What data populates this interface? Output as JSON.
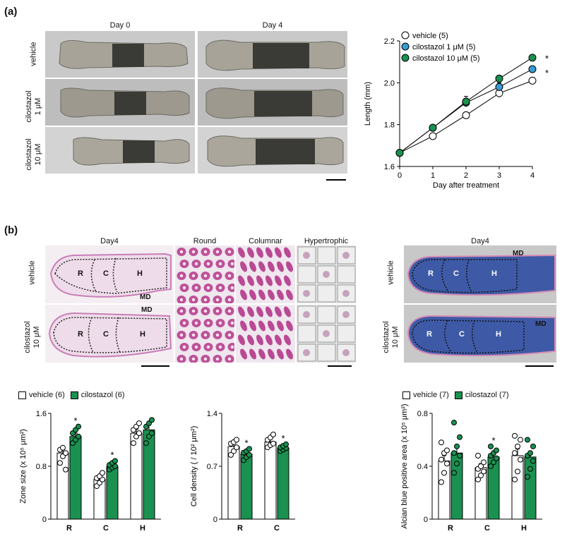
{
  "panel_a": {
    "label": "(a)",
    "col_titles": [
      "Day 0",
      "Day 4"
    ],
    "row_labels": [
      "vehicle",
      "cilostazol\n1 μM",
      "cilostazol\n10 μM"
    ]
  },
  "panel_b": {
    "label": "(b)",
    "he_titles": [
      "Day4",
      "Round",
      "Columnar",
      "Hypertrophic"
    ],
    "ab_title": "Day4",
    "row_labels": [
      "vehicle",
      "cilostazol\n10 μM"
    ],
    "zone_letters": [
      "R",
      "C",
      "H"
    ],
    "md_label": "MD"
  },
  "colors": {
    "vehicle": "#ffffff",
    "cilostazol_1": "#3a9bd5",
    "cilostazol_10": "#1a9150",
    "he_pink": "#d78bc6",
    "alcian_blue": "#3e5aa6"
  },
  "chart_data": [
    {
      "type": "line",
      "id": "length",
      "xlabel": "Day after treatment",
      "ylabel": "Length (mm)",
      "x": [
        0,
        1,
        2,
        3,
        4
      ],
      "xlim": [
        0,
        4
      ],
      "ylim": [
        1.6,
        2.2
      ],
      "yticks": [
        "1.6",
        "1.8",
        "2.0",
        "2.2"
      ],
      "xticks": [
        "0",
        "1",
        "2",
        "3",
        "4"
      ],
      "series": [
        {
          "name": "vehicle (5)",
          "values": [
            1.665,
            1.745,
            1.845,
            1.95,
            2.01
          ],
          "err": [
            0.005,
            0.01,
            0.015,
            0.02,
            0.015
          ],
          "color": "#ffffff"
        },
        {
          "name": "cilostazol 1 μM (5)",
          "values": [
            1.665,
            1.785,
            1.905,
            1.98,
            2.065
          ],
          "err": [
            0.005,
            0.01,
            0.02,
            0.02,
            0.01
          ],
          "color": "#3a9bd5"
        },
        {
          "name": "cilostazol 10 μM (5)",
          "values": [
            1.665,
            1.785,
            1.91,
            2.02,
            2.12
          ],
          "err": [
            0.005,
            0.01,
            0.025,
            0.015,
            0.01
          ],
          "color": "#1a9150"
        }
      ],
      "annotations": [
        "*",
        "*"
      ],
      "legend": "top-left"
    },
    {
      "type": "bar",
      "id": "zone_size",
      "legend": [
        "vehicle (6)",
        "cilostazol (6)"
      ],
      "ylabel": "Zone size (x 10⁵ μm²)",
      "categories": [
        "R",
        "C",
        "H"
      ],
      "ylim": [
        0,
        1.6
      ],
      "yticks": [
        "0",
        "0.8",
        "1.6"
      ],
      "series": [
        {
          "name": "vehicle (6)",
          "values": [
            1.0,
            0.6,
            1.3
          ],
          "err": [
            0.05,
            0.05,
            0.06
          ],
          "points": [
            [
              0.85,
              0.95,
              1.0,
              1.05,
              1.08,
              0.75
            ],
            [
              0.5,
              0.55,
              0.6,
              0.62,
              0.65,
              0.7
            ],
            [
              1.15,
              1.25,
              1.3,
              1.35,
              1.4,
              1.45
            ]
          ]
        },
        {
          "name": "cilostazol (6)",
          "values": [
            1.25,
            0.8,
            1.35
          ],
          "err": [
            0.05,
            0.03,
            0.07
          ],
          "points": [
            [
              1.15,
              1.2,
              1.25,
              1.3,
              1.35,
              1.4
            ],
            [
              0.75,
              0.78,
              0.8,
              0.82,
              0.85,
              0.88
            ],
            [
              1.15,
              1.25,
              1.3,
              1.4,
              1.45,
              1.5
            ]
          ]
        }
      ],
      "annotations": [
        "*",
        "*"
      ]
    },
    {
      "type": "bar",
      "id": "cell_density",
      "ylabel": "Cell density ( / 10² μm²)",
      "categories": [
        "R",
        "C"
      ],
      "ylim": [
        0,
        1.4
      ],
      "yticks": [
        "0",
        "0.7",
        "1.4"
      ],
      "series": [
        {
          "name": "vehicle (6)",
          "values": [
            0.96,
            1.02
          ],
          "err": [
            0.04,
            0.04
          ],
          "points": [
            [
              0.85,
              0.9,
              0.95,
              1.0,
              1.02,
              1.05
            ],
            [
              0.95,
              0.98,
              1.0,
              1.05,
              1.08,
              1.12
            ]
          ]
        },
        {
          "name": "cilostazol (6)",
          "values": [
            0.86,
            0.94
          ],
          "err": [
            0.03,
            0.02
          ],
          "points": [
            [
              0.78,
              0.82,
              0.85,
              0.88,
              0.9,
              0.93
            ],
            [
              0.9,
              0.92,
              0.94,
              0.95,
              0.97,
              0.99
            ]
          ]
        }
      ],
      "annotations": [
        "*",
        "*"
      ]
    },
    {
      "type": "bar",
      "id": "alcian_area",
      "legend": [
        "vehicle (7)",
        "cilostazol (7)"
      ],
      "ylabel": "Alcian blue positive area (x 10⁵ μm²)",
      "categories": [
        "R",
        "C",
        "H"
      ],
      "ylim": [
        0,
        0.8
      ],
      "yticks": [
        "0",
        "0.4",
        "0.8"
      ],
      "series": [
        {
          "name": "vehicle (7)",
          "values": [
            0.44,
            0.39,
            0.48
          ],
          "err": [
            0.04,
            0.03,
            0.05
          ],
          "points": [
            [
              0.28,
              0.35,
              0.42,
              0.45,
              0.5,
              0.52,
              0.58
            ],
            [
              0.3,
              0.33,
              0.36,
              0.38,
              0.4,
              0.43,
              0.48
            ],
            [
              0.3,
              0.36,
              0.45,
              0.5,
              0.55,
              0.6,
              0.63
            ]
          ]
        },
        {
          "name": "cilostazol (7)",
          "values": [
            0.5,
            0.47,
            0.47
          ],
          "err": [
            0.05,
            0.02,
            0.04
          ],
          "points": [
            [
              0.35,
              0.42,
              0.48,
              0.5,
              0.55,
              0.62,
              0.73
            ],
            [
              0.4,
              0.43,
              0.46,
              0.48,
              0.5,
              0.52,
              0.55
            ],
            [
              0.32,
              0.38,
              0.44,
              0.48,
              0.5,
              0.55,
              0.6
            ]
          ]
        }
      ],
      "annotations": [
        "*"
      ]
    }
  ]
}
